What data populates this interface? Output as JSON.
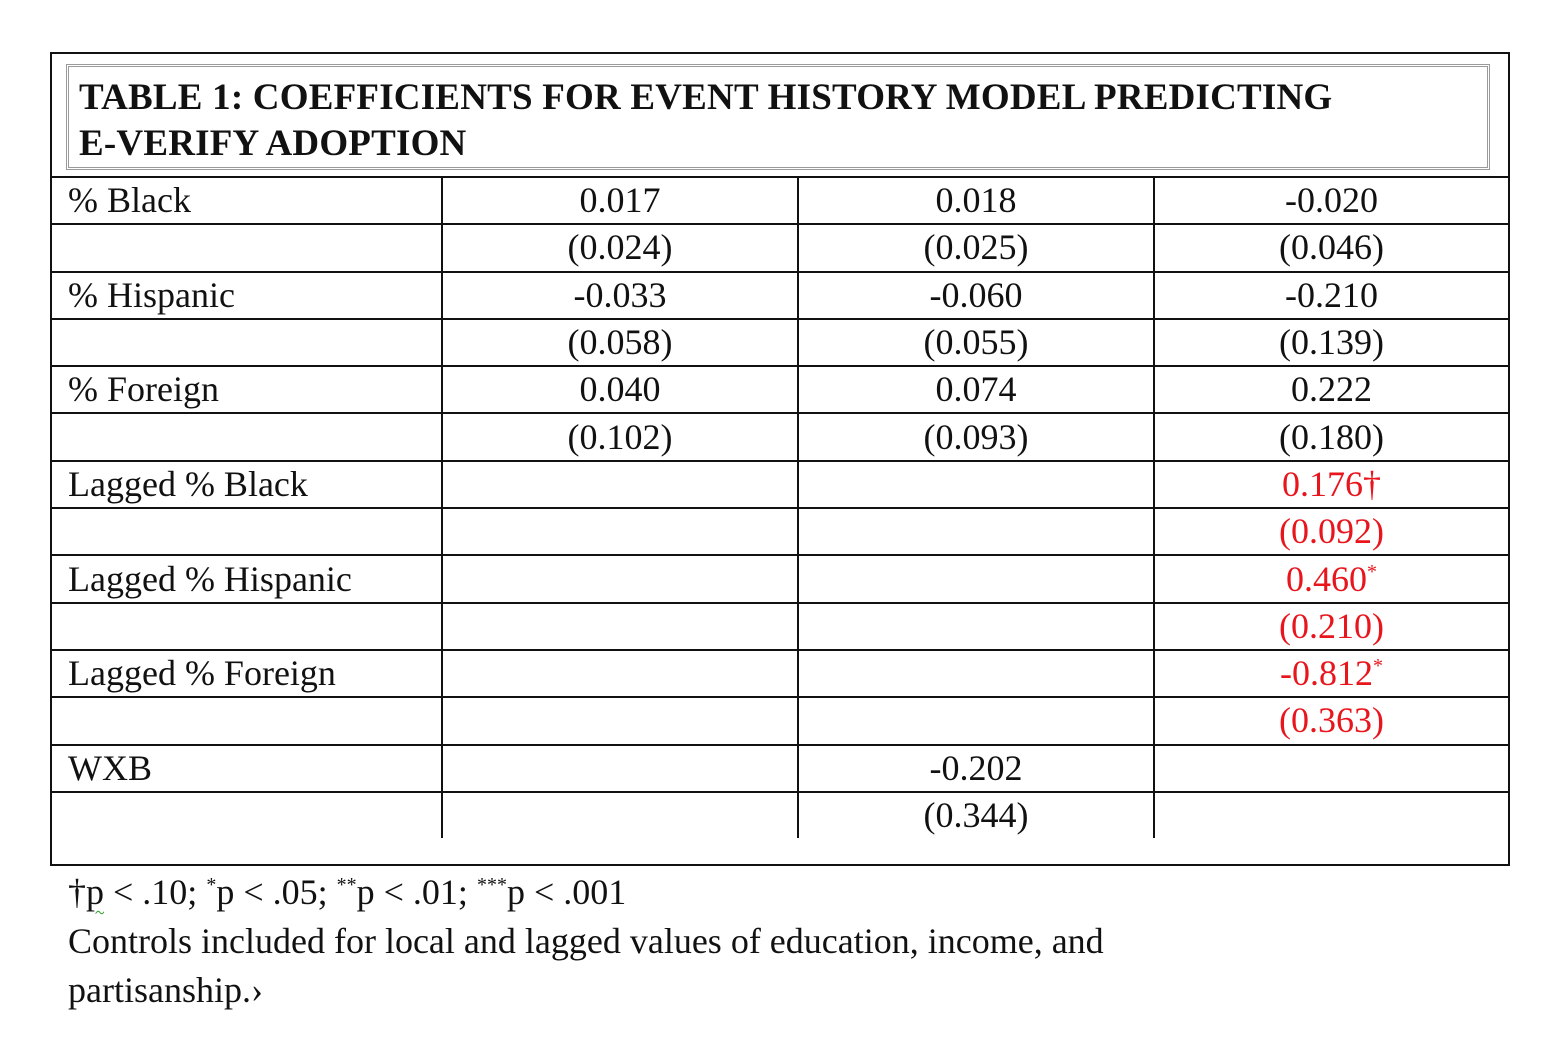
{
  "title": {
    "line1": "TABLE 1: COEFFICIENTS FOR EVENT HISTORY MODEL PREDICTING",
    "line2": "E-VERIFY ADOPTION"
  },
  "rows": [
    {
      "label": "% Black",
      "c1": "0.017",
      "c2": "0.018",
      "c3": "-0.020"
    },
    {
      "label": "",
      "c1": "(0.024)",
      "c2": "(0.025)",
      "c3": "(0.046)"
    },
    {
      "label": "% Hispanic",
      "c1": "-0.033",
      "c2": "-0.060",
      "c3": "-0.210"
    },
    {
      "label": "",
      "c1": "(0.058)",
      "c2": "(0.055)",
      "c3": "(0.139)"
    },
    {
      "label": "% Foreign",
      "c1": "0.040",
      "c2": "0.074",
      "c3": "0.222"
    },
    {
      "label": "",
      "c1": "(0.102)",
      "c2": "(0.093)",
      "c3": "(0.180)"
    },
    {
      "label": "Lagged % Black",
      "c1": "",
      "c2": "",
      "c3": "0.176†"
    },
    {
      "label": "",
      "c1": "",
      "c2": "",
      "c3": "(0.092)"
    },
    {
      "label": "Lagged % Hispanic",
      "c1": "",
      "c2": "",
      "c3": "0.460",
      "c3_mark": "*"
    },
    {
      "label": "",
      "c1": "",
      "c2": "",
      "c3": "(0.210)"
    },
    {
      "label": "Lagged % Foreign",
      "c1": "",
      "c2": "",
      "c3": "-0.812",
      "c3_mark": "*"
    },
    {
      "label": "",
      "c1": "",
      "c2": "",
      "c3": "(0.363)"
    },
    {
      "label": "WXB",
      "c1": "",
      "c2": "-0.202",
      "c3": ""
    },
    {
      "label": "",
      "c1": "",
      "c2": "(0.344)",
      "c3": ""
    }
  ],
  "highlight_color": "#e8151c",
  "notes": {
    "sig_dagger": "†",
    "sig_p1": "p",
    "sig_t1": " < .10; ",
    "sig_s1": "*",
    "sig_t2": "p < .05; ",
    "sig_s2": "**",
    "sig_t3": "p < .01; ",
    "sig_s3": "***",
    "sig_t4": "p < .001",
    "controls": "Controls included for local and lagged values of education, income, and partisanship.›"
  }
}
